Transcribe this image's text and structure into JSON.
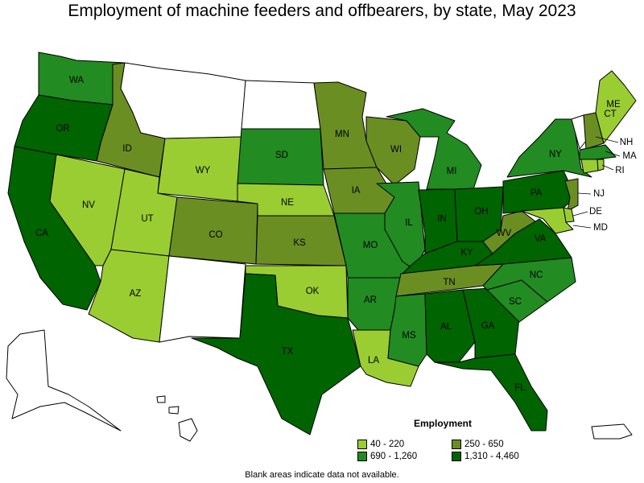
{
  "title": "Employment of machine feeders and offbearers, by state, May 2023",
  "legend": {
    "title": "Employment",
    "items": [
      {
        "label": "40 - 220",
        "color": "#9acd32"
      },
      {
        "label": "250 - 650",
        "color": "#6b8e23"
      },
      {
        "label": "690 - 1,260",
        "color": "#228b22"
      },
      {
        "label": "1,310 - 4,460",
        "color": "#006400"
      }
    ]
  },
  "note": "Blank areas indicate data not available.",
  "colors": {
    "no_data": "#ffffff",
    "border": "#000000"
  },
  "states": [
    {
      "abbr": "WA",
      "cat": 2
    },
    {
      "abbr": "OR",
      "cat": 3
    },
    {
      "abbr": "CA",
      "cat": 3
    },
    {
      "abbr": "ID",
      "cat": 1
    },
    {
      "abbr": "NV",
      "cat": 0
    },
    {
      "abbr": "UT",
      "cat": 0
    },
    {
      "abbr": "AZ",
      "cat": 0
    },
    {
      "abbr": "MT",
      "cat": null
    },
    {
      "abbr": "WY",
      "cat": 0
    },
    {
      "abbr": "CO",
      "cat": 1
    },
    {
      "abbr": "NM",
      "cat": null
    },
    {
      "abbr": "ND",
      "cat": null
    },
    {
      "abbr": "SD",
      "cat": 2
    },
    {
      "abbr": "NE",
      "cat": 0
    },
    {
      "abbr": "KS",
      "cat": 1
    },
    {
      "abbr": "OK",
      "cat": 0
    },
    {
      "abbr": "TX",
      "cat": 3
    },
    {
      "abbr": "MN",
      "cat": 1
    },
    {
      "abbr": "IA",
      "cat": 1
    },
    {
      "abbr": "MO",
      "cat": 2
    },
    {
      "abbr": "AR",
      "cat": 2
    },
    {
      "abbr": "LA",
      "cat": 0
    },
    {
      "abbr": "WI",
      "cat": 1
    },
    {
      "abbr": "IL",
      "cat": 2
    },
    {
      "abbr": "MI",
      "cat": 2
    },
    {
      "abbr": "IN",
      "cat": 3
    },
    {
      "abbr": "OH",
      "cat": 3
    },
    {
      "abbr": "KY",
      "cat": 3
    },
    {
      "abbr": "TN",
      "cat": 1
    },
    {
      "abbr": "MS",
      "cat": 2
    },
    {
      "abbr": "AL",
      "cat": 3
    },
    {
      "abbr": "GA",
      "cat": 3
    },
    {
      "abbr": "FL",
      "cat": 3
    },
    {
      "abbr": "SC",
      "cat": 2
    },
    {
      "abbr": "NC",
      "cat": 2
    },
    {
      "abbr": "VA",
      "cat": 3
    },
    {
      "abbr": "WV",
      "cat": 1
    },
    {
      "abbr": "PA",
      "cat": 3
    },
    {
      "abbr": "NY",
      "cat": 2
    },
    {
      "abbr": "VT",
      "cat": null
    },
    {
      "abbr": "NH",
      "cat": 1
    },
    {
      "abbr": "ME",
      "cat": 0
    },
    {
      "abbr": "MA",
      "cat": 2
    },
    {
      "abbr": "RI",
      "cat": 0
    },
    {
      "abbr": "CT",
      "cat": 0
    },
    {
      "abbr": "NJ",
      "cat": 1
    },
    {
      "abbr": "DE",
      "cat": 0
    },
    {
      "abbr": "MD",
      "cat": 0
    },
    {
      "abbr": "AK",
      "cat": null
    },
    {
      "abbr": "HI",
      "cat": null
    },
    {
      "abbr": "PR",
      "cat": null
    }
  ]
}
